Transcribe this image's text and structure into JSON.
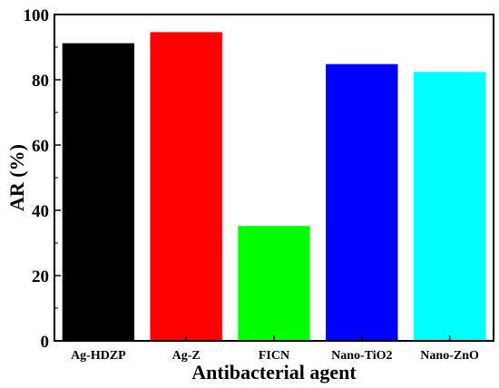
{
  "chart_data": {
    "type": "bar",
    "title": "",
    "xlabel": "Antibacterial agent",
    "ylabel": "AR (%)",
    "ylim": [
      0,
      100
    ],
    "yticks": [
      0,
      20,
      40,
      60,
      80,
      100
    ],
    "categories": [
      "Ag-HDZP",
      "Ag-Z",
      "FICN",
      "Nano-TiO2",
      "Nano-ZnO"
    ],
    "values": [
      91.2,
      94.6,
      35.2,
      84.8,
      82.4
    ],
    "colors": [
      "#000000",
      "#ff0000",
      "#00ff00",
      "#0000ff",
      "#00ffff"
    ],
    "grid": false,
    "legend": "none"
  }
}
